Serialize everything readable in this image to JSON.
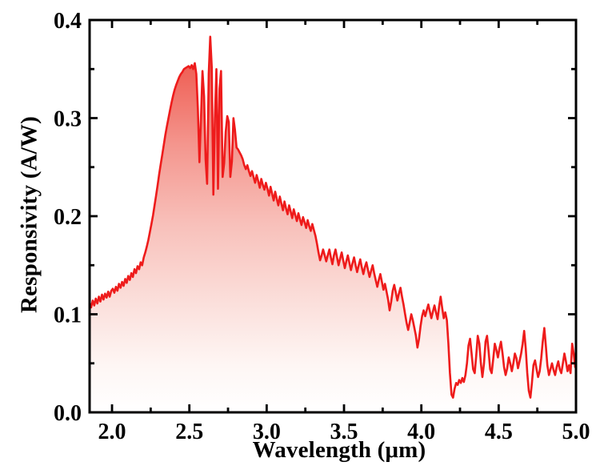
{
  "chart_data": {
    "type": "area",
    "title": "",
    "xlabel": "Wavelength (μm)",
    "ylabel": "Responsivity (A/W)",
    "xlim": [
      1.855,
      5.0
    ],
    "ylim": [
      0.0,
      0.4
    ],
    "grid": false,
    "legend_position": "none",
    "x_major_ticks": [
      2.0,
      2.5,
      3.0,
      3.5,
      4.0,
      4.5,
      5.0
    ],
    "x_tick_labels": [
      "2.0",
      "2.5",
      "3.0",
      "3.5",
      "4.0",
      "4.5",
      "5.0"
    ],
    "x_minor_ticks": [
      2.25,
      2.75,
      3.25,
      3.75,
      4.25,
      4.75
    ],
    "y_major_ticks": [
      0.0,
      0.1,
      0.2,
      0.3,
      0.4
    ],
    "y_tick_labels": [
      "0.0",
      "0.1",
      "0.2",
      "0.3",
      "0.4"
    ],
    "y_minor_ticks": [
      0.05,
      0.15,
      0.25,
      0.35
    ],
    "series": [
      {
        "name": "responsivity",
        "x_start": 1.855,
        "x_step": 0.01,
        "peak": {
          "wavelength": 2.63,
          "value": 0.383
        },
        "values": [
          0.112,
          0.107,
          0.114,
          0.109,
          0.116,
          0.111,
          0.118,
          0.113,
          0.12,
          0.115,
          0.121,
          0.117,
          0.123,
          0.118,
          0.124,
          0.126,
          0.122,
          0.128,
          0.124,
          0.131,
          0.127,
          0.133,
          0.129,
          0.136,
          0.132,
          0.139,
          0.135,
          0.142,
          0.138,
          0.146,
          0.142,
          0.149,
          0.146,
          0.153,
          0.15,
          0.158,
          0.163,
          0.169,
          0.176,
          0.184,
          0.192,
          0.201,
          0.211,
          0.221,
          0.232,
          0.243,
          0.253,
          0.263,
          0.273,
          0.283,
          0.292,
          0.3,
          0.308,
          0.316,
          0.323,
          0.329,
          0.334,
          0.338,
          0.342,
          0.345,
          0.347,
          0.35,
          0.351,
          0.352,
          0.353,
          0.351,
          0.354,
          0.35,
          0.356,
          0.345,
          0.31,
          0.255,
          0.3,
          0.348,
          0.322,
          0.258,
          0.233,
          0.345,
          0.383,
          0.352,
          0.222,
          0.3,
          0.35,
          0.228,
          0.33,
          0.348,
          0.24,
          0.254,
          0.286,
          0.302,
          0.296,
          0.24,
          0.256,
          0.3,
          0.288,
          0.27,
          0.268,
          0.265,
          0.262,
          0.258,
          0.252,
          0.248,
          0.252,
          0.246,
          0.241,
          0.246,
          0.24,
          0.234,
          0.242,
          0.236,
          0.229,
          0.238,
          0.232,
          0.227,
          0.234,
          0.228,
          0.221,
          0.23,
          0.223,
          0.216,
          0.225,
          0.218,
          0.211,
          0.22,
          0.213,
          0.206,
          0.215,
          0.208,
          0.202,
          0.211,
          0.205,
          0.198,
          0.207,
          0.201,
          0.195,
          0.203,
          0.197,
          0.191,
          0.199,
          0.194,
          0.188,
          0.196,
          0.19,
          0.185,
          0.192,
          0.186,
          0.18,
          0.172,
          0.163,
          0.155,
          0.16,
          0.166,
          0.16,
          0.154,
          0.16,
          0.166,
          0.158,
          0.151,
          0.16,
          0.166,
          0.158,
          0.15,
          0.157,
          0.163,
          0.155,
          0.147,
          0.154,
          0.16,
          0.152,
          0.145,
          0.152,
          0.158,
          0.15,
          0.143,
          0.15,
          0.156,
          0.148,
          0.141,
          0.148,
          0.153,
          0.145,
          0.138,
          0.144,
          0.15,
          0.142,
          0.135,
          0.128,
          0.135,
          0.141,
          0.133,
          0.125,
          0.131,
          0.123,
          0.115,
          0.104,
          0.113,
          0.124,
          0.13,
          0.122,
          0.114,
          0.121,
          0.127,
          0.118,
          0.11,
          0.1,
          0.091,
          0.084,
          0.092,
          0.1,
          0.094,
          0.086,
          0.078,
          0.066,
          0.075,
          0.088,
          0.098,
          0.104,
          0.098,
          0.104,
          0.11,
          0.103,
          0.096,
          0.103,
          0.109,
          0.102,
          0.095,
          0.108,
          0.118,
          0.106,
          0.096,
          0.102,
          0.094,
          0.07,
          0.04,
          0.018,
          0.015,
          0.024,
          0.03,
          0.028,
          0.033,
          0.03,
          0.035,
          0.031,
          0.038,
          0.05,
          0.068,
          0.075,
          0.06,
          0.044,
          0.04,
          0.058,
          0.078,
          0.07,
          0.05,
          0.036,
          0.05,
          0.072,
          0.078,
          0.062,
          0.044,
          0.04,
          0.055,
          0.07,
          0.064,
          0.056,
          0.065,
          0.072,
          0.06,
          0.046,
          0.038,
          0.045,
          0.056,
          0.05,
          0.042,
          0.05,
          0.06,
          0.055,
          0.045,
          0.052,
          0.06,
          0.07,
          0.083,
          0.065,
          0.04,
          0.022,
          0.015,
          0.03,
          0.048,
          0.053,
          0.044,
          0.036,
          0.042,
          0.055,
          0.072,
          0.086,
          0.068,
          0.048,
          0.038,
          0.044,
          0.05,
          0.043,
          0.038,
          0.046,
          0.052,
          0.044,
          0.04,
          0.05,
          0.06,
          0.052,
          0.042,
          0.048,
          0.04,
          0.07,
          0.06,
          0.046
        ]
      }
    ],
    "styles": {
      "line_color": "#ee1b1b",
      "axis_color": "#000000",
      "tick_label_color": "#000000",
      "fill_gradient": [
        {
          "offset": "0%",
          "color": "#ee4339"
        },
        {
          "offset": "15%",
          "color": "#f0685e"
        },
        {
          "offset": "32%",
          "color": "#f4968e"
        },
        {
          "offset": "52%",
          "color": "#f8c0ba"
        },
        {
          "offset": "72%",
          "color": "#fbdfdb"
        },
        {
          "offset": "88%",
          "color": "#fef6f4"
        },
        {
          "offset": "100%",
          "color": "#ffffff"
        }
      ]
    }
  }
}
